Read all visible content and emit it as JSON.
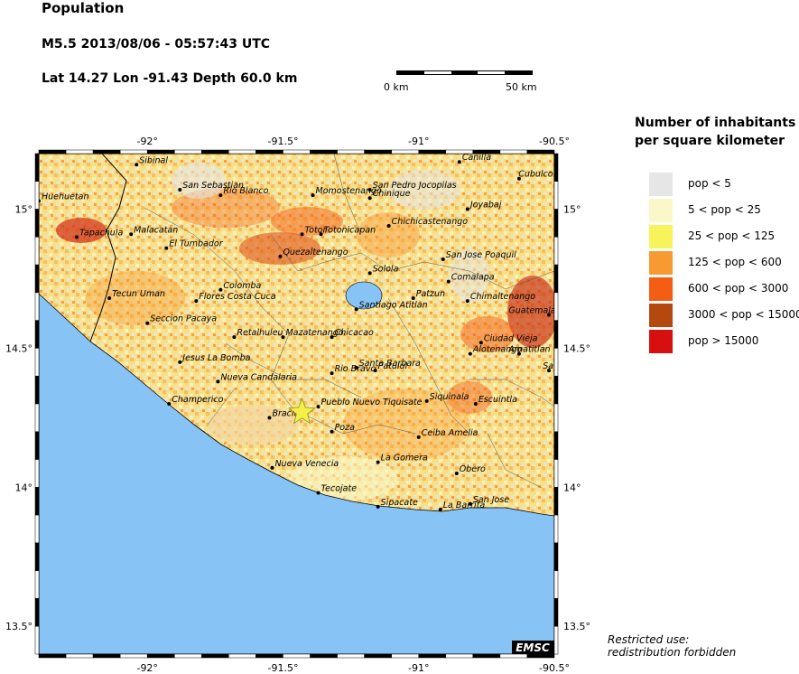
{
  "header": {
    "title": "Population",
    "event": "M5.5  2013/08/06 - 05:57:43 UTC",
    "location": "Lat 14.27    Lon -91.43    Depth  60.0 km"
  },
  "scale": {
    "left_label": "0 km",
    "right_label": "50 km"
  },
  "legend": {
    "title_line1": "Number of inhabitants",
    "title_line2": "per square kilometer",
    "items": [
      {
        "label": "pop < 5",
        "color": "#e6e6e6"
      },
      {
        "label": "5 < pop < 25",
        "color": "#faf8c8"
      },
      {
        "label": "25 < pop < 125",
        "color": "#f6f45a"
      },
      {
        "label": "125 < pop < 600",
        "color": "#f89a32"
      },
      {
        "label": "600 < pop < 3000",
        "color": "#f55c14"
      },
      {
        "label": "3000 < pop < 15000",
        "color": "#b5480e"
      },
      {
        "label": "pop > 15000",
        "color": "#d70f0f"
      }
    ]
  },
  "note": {
    "line1": "Restricted use:",
    "line2": "redistribution forbidden"
  },
  "map": {
    "lon_range": [
      -92.4,
      -90.5
    ],
    "lat_range": [
      13.4,
      15.2
    ],
    "x_ticks": [
      "-92°",
      "-91.5°",
      "-91°",
      "-90.5°"
    ],
    "y_ticks": [
      "15°",
      "14.5°",
      "14°",
      "13.5°"
    ],
    "ocean_color": "#87c4f5",
    "watermark": "EMSC",
    "epicenter": {
      "lon": -91.43,
      "lat": 14.27,
      "color": "#f4f04a"
    },
    "cities": [
      {
        "name": "Sibinal",
        "lon": -92.04,
        "lat": 15.16
      },
      {
        "name": "Canilla",
        "lon": -90.85,
        "lat": 15.17
      },
      {
        "name": "Cubulco",
        "lon": -90.63,
        "lat": 15.11
      },
      {
        "name": "Huehuetan",
        "lon": -92.4,
        "lat": 15.03
      },
      {
        "name": "San Sebastian",
        "lon": -91.88,
        "lat": 15.07
      },
      {
        "name": "Rio Blanco",
        "lon": -91.73,
        "lat": 15.05
      },
      {
        "name": "Momostenango",
        "lon": -91.39,
        "lat": 15.05
      },
      {
        "name": "San Pedro Jocopilas",
        "lon": -91.18,
        "lat": 15.07
      },
      {
        "name": "Chinique",
        "lon": -91.18,
        "lat": 15.04
      },
      {
        "name": "Joyabaj",
        "lon": -90.82,
        "lat": 15.0
      },
      {
        "name": "Chichicastenango",
        "lon": -91.11,
        "lat": 14.94
      },
      {
        "name": "Tapachula",
        "lon": -92.26,
        "lat": 14.9
      },
      {
        "name": "Malacatan",
        "lon": -92.06,
        "lat": 14.91
      },
      {
        "name": "El Tumbador",
        "lon": -91.93,
        "lat": 14.86
      },
      {
        "name": "Totonicapan",
        "lon": -91.36,
        "lat": 14.91
      },
      {
        "name": "Totor",
        "lon": -91.43,
        "lat": 14.91
      },
      {
        "name": "Quezaltenango",
        "lon": -91.51,
        "lat": 14.83
      },
      {
        "name": "San Jose Poaquil",
        "lon": -90.91,
        "lat": 14.82
      },
      {
        "name": "Solola",
        "lon": -91.18,
        "lat": 14.77
      },
      {
        "name": "Comalapa",
        "lon": -90.89,
        "lat": 14.74
      },
      {
        "name": "Colomba",
        "lon": -91.73,
        "lat": 14.71
      },
      {
        "name": "Tecun Uman",
        "lon": -92.14,
        "lat": 14.68
      },
      {
        "name": "Flores Costa Cuca",
        "lon": -91.82,
        "lat": 14.67
      },
      {
        "name": "Patzun",
        "lon": -91.02,
        "lat": 14.68
      },
      {
        "name": "Chimaltenango",
        "lon": -90.82,
        "lat": 14.67
      },
      {
        "name": "Santiago Atitlan",
        "lon": -91.23,
        "lat": 14.64
      },
      {
        "name": "Seccion Pacaya",
        "lon": -92.0,
        "lat": 14.59
      },
      {
        "name": "Guatemala",
        "lon": -90.52,
        "lat": 14.62
      },
      {
        "name": "Ciudad Vieja",
        "lon": -90.77,
        "lat": 14.52
      },
      {
        "name": "Mazatenango",
        "lon": -91.5,
        "lat": 14.54
      },
      {
        "name": "Retalhuleu",
        "lon": -91.68,
        "lat": 14.54
      },
      {
        "name": "Chicacao",
        "lon": -91.32,
        "lat": 14.54
      },
      {
        "name": "Alotenango",
        "lon": -90.81,
        "lat": 14.48
      },
      {
        "name": "Amatitlan",
        "lon": -90.63,
        "lat": 14.48
      },
      {
        "name": "Jesus La Bomba",
        "lon": -91.88,
        "lat": 14.45
      },
      {
        "name": "Santa Barbara",
        "lon": -91.23,
        "lat": 14.43
      },
      {
        "name": "Patulul",
        "lon": -91.16,
        "lat": 14.42
      },
      {
        "name": "Rio Bravo",
        "lon": -91.32,
        "lat": 14.41
      },
      {
        "name": "Sa",
        "lon": -90.52,
        "lat": 14.42
      },
      {
        "name": "Nueva Candalaria",
        "lon": -91.74,
        "lat": 14.38
      },
      {
        "name": "Siquinala",
        "lon": -90.97,
        "lat": 14.31
      },
      {
        "name": "Escuintla",
        "lon": -90.79,
        "lat": 14.3
      },
      {
        "name": "Champerico",
        "lon": -91.92,
        "lat": 14.3
      },
      {
        "name": "Pueblo Nuevo Tiquisate",
        "lon": -91.37,
        "lat": 14.29
      },
      {
        "name": "Bracitos",
        "lon": -91.55,
        "lat": 14.25
      },
      {
        "name": "Poza",
        "lon": -91.32,
        "lat": 14.2
      },
      {
        "name": "Ceiba Amelia",
        "lon": -91.0,
        "lat": 14.18
      },
      {
        "name": "La Gomera",
        "lon": -91.15,
        "lat": 14.09
      },
      {
        "name": "Nueva Venecia",
        "lon": -91.54,
        "lat": 14.07
      },
      {
        "name": "Obero",
        "lon": -90.86,
        "lat": 14.05
      },
      {
        "name": "Tecojate",
        "lon": -91.37,
        "lat": 13.98
      },
      {
        "name": "Sipacate",
        "lon": -91.15,
        "lat": 13.93
      },
      {
        "name": "San Jose",
        "lon": -90.81,
        "lat": 13.94
      },
      {
        "name": "La Barrita",
        "lon": -90.92,
        "lat": 13.92
      }
    ]
  }
}
